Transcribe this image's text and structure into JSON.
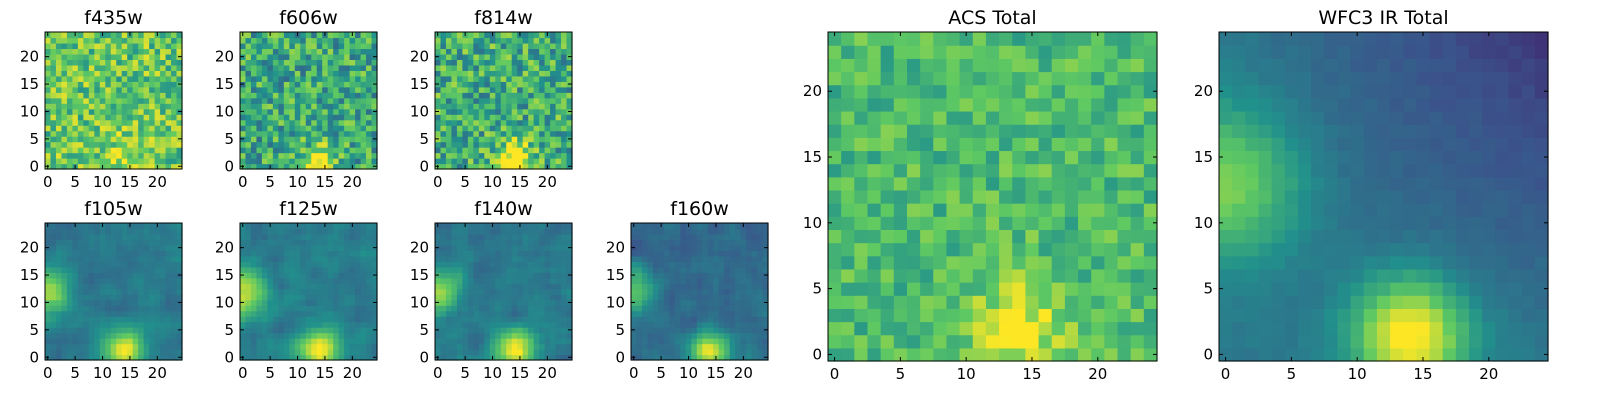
{
  "colormap": [
    "#440154",
    "#3b528b",
    "#21918c",
    "#5ec962",
    "#fde725"
  ],
  "chart_data": [
    {
      "type": "heatmap",
      "title": "f435w",
      "xlabel": "",
      "ylabel": "",
      "grid_size": 25,
      "xlim": [
        -0.5,
        24.5
      ],
      "ylim": [
        -0.5,
        24.5
      ],
      "xticks": [
        "0",
        "5",
        "10",
        "15",
        "20"
      ],
      "yticks": [
        "0",
        "5",
        "10",
        "15",
        "20"
      ],
      "pattern": "noise",
      "noise_mean": 0.74,
      "noise_spread": 0.22,
      "blobs": [
        {
          "x": 14,
          "y": 2,
          "amp": 0.15,
          "sigma": 2.5
        }
      ]
    },
    {
      "type": "heatmap",
      "title": "f606w",
      "xlabel": "",
      "ylabel": "",
      "grid_size": 25,
      "xlim": [
        -0.5,
        24.5
      ],
      "ylim": [
        -0.5,
        24.5
      ],
      "xticks": [
        "0",
        "5",
        "10",
        "15",
        "20"
      ],
      "yticks": [
        "0",
        "5",
        "10",
        "15",
        "20"
      ],
      "pattern": "noise",
      "noise_mean": 0.6,
      "noise_spread": 0.25,
      "blobs": [
        {
          "x": 14,
          "y": 1,
          "amp": 0.45,
          "sigma": 2.0
        }
      ]
    },
    {
      "type": "heatmap",
      "title": "f814w",
      "xlabel": "",
      "ylabel": "",
      "grid_size": 25,
      "xlim": [
        -0.5,
        24.5
      ],
      "ylim": [
        -0.5,
        24.5
      ],
      "xticks": [
        "0",
        "5",
        "10",
        "15",
        "20"
      ],
      "yticks": [
        "0",
        "5",
        "10",
        "15",
        "20"
      ],
      "pattern": "noise",
      "noise_mean": 0.62,
      "noise_spread": 0.25,
      "blobs": [
        {
          "x": 14,
          "y": 1.5,
          "amp": 0.5,
          "sigma": 2.2
        }
      ]
    },
    {
      "type": "heatmap",
      "title": "f105w",
      "xlabel": "",
      "ylabel": "",
      "grid_size": 25,
      "xlim": [
        -0.5,
        24.5
      ],
      "ylim": [
        -0.5,
        24.5
      ],
      "xticks": [
        "0",
        "5",
        "10",
        "15",
        "20"
      ],
      "yticks": [
        "0",
        "5",
        "10",
        "15",
        "20"
      ],
      "pattern": "smooth",
      "noise_mean": 0.4,
      "noise_spread": 0.14,
      "blobs": [
        {
          "x": 14,
          "y": 1.5,
          "amp": 0.6,
          "sigma": 2.6
        },
        {
          "x": 0,
          "y": 12,
          "amp": 0.45,
          "sigma": 3.0
        }
      ]
    },
    {
      "type": "heatmap",
      "title": "f125w",
      "xlabel": "",
      "ylabel": "",
      "grid_size": 25,
      "xlim": [
        -0.5,
        24.5
      ],
      "ylim": [
        -0.5,
        24.5
      ],
      "xticks": [
        "0",
        "5",
        "10",
        "15",
        "20"
      ],
      "yticks": [
        "0",
        "5",
        "10",
        "15",
        "20"
      ],
      "pattern": "smooth",
      "noise_mean": 0.42,
      "noise_spread": 0.15,
      "blobs": [
        {
          "x": 14,
          "y": 1.5,
          "amp": 0.6,
          "sigma": 2.6
        },
        {
          "x": 0,
          "y": 12,
          "amp": 0.5,
          "sigma": 3.0
        }
      ]
    },
    {
      "type": "heatmap",
      "title": "f140w",
      "xlabel": "",
      "ylabel": "",
      "grid_size": 25,
      "xlim": [
        -0.5,
        24.5
      ],
      "ylim": [
        -0.5,
        24.5
      ],
      "xticks": [
        "0",
        "5",
        "10",
        "15",
        "20"
      ],
      "yticks": [
        "0",
        "5",
        "10",
        "15",
        "20"
      ],
      "pattern": "smooth",
      "noise_mean": 0.4,
      "noise_spread": 0.15,
      "blobs": [
        {
          "x": 14,
          "y": 1.5,
          "amp": 0.6,
          "sigma": 2.6
        },
        {
          "x": 0,
          "y": 12,
          "amp": 0.45,
          "sigma": 3.0
        }
      ]
    },
    {
      "type": "heatmap",
      "title": "f160w",
      "xlabel": "",
      "ylabel": "",
      "grid_size": 25,
      "xlim": [
        -0.5,
        24.5
      ],
      "ylim": [
        -0.5,
        24.5
      ],
      "xticks": [
        "0",
        "5",
        "10",
        "15",
        "20"
      ],
      "yticks": [
        "0",
        "5",
        "10",
        "15",
        "20"
      ],
      "pattern": "smooth",
      "noise_mean": 0.34,
      "noise_spread": 0.15,
      "blobs": [
        {
          "x": 14,
          "y": 1.5,
          "amp": 0.65,
          "sigma": 2.4
        },
        {
          "x": 0,
          "y": 12,
          "amp": 0.4,
          "sigma": 2.8
        }
      ]
    },
    {
      "type": "heatmap",
      "title": "ACS Total",
      "xlabel": "",
      "ylabel": "",
      "grid_size": 25,
      "xlim": [
        -0.5,
        24.5
      ],
      "ylim": [
        -0.5,
        24.5
      ],
      "xticks": [
        "0",
        "5",
        "10",
        "15",
        "20"
      ],
      "yticks": [
        "0",
        "5",
        "10",
        "15",
        "20"
      ],
      "pattern": "noise",
      "noise_mean": 0.68,
      "noise_spread": 0.14,
      "blobs": [
        {
          "x": 14,
          "y": 2,
          "amp": 0.3,
          "sigma": 2.6
        }
      ]
    },
    {
      "type": "heatmap",
      "title": "WFC3 IR Total",
      "xlabel": "",
      "ylabel": "",
      "grid_size": 25,
      "xlim": [
        -0.5,
        24.5
      ],
      "ylim": [
        -0.5,
        24.5
      ],
      "xticks": [
        "0",
        "5",
        "10",
        "15",
        "20"
      ],
      "yticks": [
        "0",
        "5",
        "10",
        "15",
        "20"
      ],
      "pattern": "gradient",
      "noise_mean": 0.4,
      "noise_spread": 0.04,
      "blobs": [
        {
          "x": 14,
          "y": 1.5,
          "amp": 0.65,
          "sigma": 3.0
        },
        {
          "x": 0,
          "y": 13,
          "amp": 0.4,
          "sigma": 4.0
        }
      ]
    }
  ]
}
